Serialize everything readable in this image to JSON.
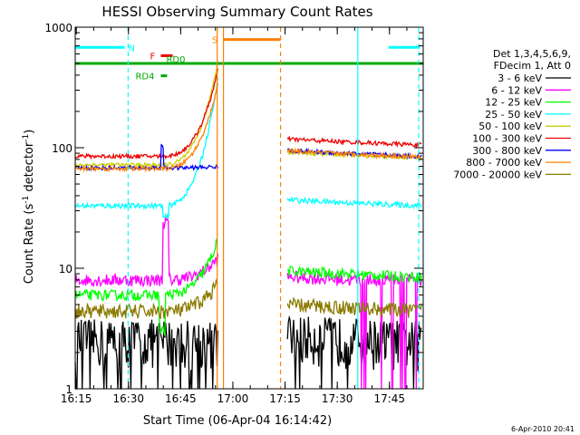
{
  "chart_data": {
    "type": "line",
    "title": "HESSI Observing Summary Count Rates",
    "xlabel": "Start Time (06-Apr-04 16:14:42)",
    "ylabel_main": "Count Rate (s",
    "ylabel_sup1": "-1",
    "ylabel_mid": " detector",
    "ylabel_sup2": "-1",
    "ylabel_end": ")",
    "yscale": "log",
    "ylim": [
      1,
      1000
    ],
    "xlim_minutes": [
      0,
      100
    ],
    "x_ticks": [
      {
        "m": 0.3,
        "label": "16:15"
      },
      {
        "m": 15.3,
        "label": "16:30"
      },
      {
        "m": 30.3,
        "label": "16:45"
      },
      {
        "m": 45.3,
        "label": "17:00"
      },
      {
        "m": 60.3,
        "label": "17:15"
      },
      {
        "m": 75.3,
        "label": "17:30"
      },
      {
        "m": 90.3,
        "label": "17:45"
      }
    ],
    "y_ticks": [
      {
        "v": 1,
        "label": "1"
      },
      {
        "v": 10,
        "label": "10"
      },
      {
        "v": 100,
        "label": "100"
      },
      {
        "v": 1000,
        "label": "1000"
      }
    ],
    "legend_header": [
      "Det 1,3,4,5,6,9,",
      "FDecim 1, Att 0"
    ],
    "series": [
      {
        "name": "3 - 6 keV",
        "color": "#000000",
        "pre": 2.6,
        "post": 2.8,
        "peak": 2.5,
        "noise": 0.45
      },
      {
        "name": "6 - 12 keV",
        "color": "#ff00ff",
        "pre": 8.0,
        "post": 8.5,
        "peak": 12,
        "noise": 0.12
      },
      {
        "name": "12 - 25 keV",
        "color": "#00ff00",
        "pre": 6.0,
        "post": 9.5,
        "peak": 17,
        "noise": 0.1
      },
      {
        "name": "25 - 50 keV",
        "color": "#00ffff",
        "pre": 33,
        "post": 37,
        "peak": 370,
        "noise": 0.05
      },
      {
        "name": "50 - 100 keV",
        "color": "#cccc00",
        "pre": 72,
        "post": 92,
        "peak": 520,
        "noise": 0.04
      },
      {
        "name": "100 - 300 keV",
        "color": "#ee0000",
        "pre": 85,
        "post": 118,
        "peak": 440,
        "noise": 0.04
      },
      {
        "name": "300 - 800 keV",
        "color": "#0000ff",
        "pre": 68,
        "post": 95,
        "peak": 70,
        "noise": 0.04
      },
      {
        "name": "800 - 7000 keV",
        "color": "#ff8000",
        "pre": 67,
        "post": 94,
        "peak": 330,
        "noise": 0.04
      },
      {
        "name": "7000 - 20000 keV",
        "color": "#8b7a00",
        "pre": 4.4,
        "post": 5.0,
        "peak": 7.5,
        "noise": 0.14
      }
    ],
    "annotations": {
      "N": {
        "label": "N",
        "color": "#00ffff",
        "ranges": [
          [
            0,
            14.2
          ],
          [
            90,
            99
          ]
        ],
        "level": 680
      },
      "F": {
        "label": "F",
        "color": "#ee0000",
        "range": [
          24.6,
          28.0
        ],
        "level": 580
      },
      "RD0": {
        "label": "RD0",
        "color": "#00aa00",
        "level": 500
      },
      "RD4": {
        "label": "RD4",
        "color": "#00aa00",
        "range": [
          24.6,
          26.4
        ],
        "level": 395
      },
      "S": {
        "label": "S",
        "color": "#ff8000",
        "range": [
          42.7,
          59.0
        ],
        "level": 790
      }
    },
    "markers": {
      "cyan_dashed": [
        15.2,
        98.7
      ],
      "cyan_solid": [
        81.2
      ],
      "orange_solid": [
        40.8,
        42.6
      ],
      "orange_dashed": [
        59.0
      ]
    },
    "data_gap_minutes": [
      41.0,
      61.0
    ]
  },
  "footer": {
    "timestamp": "6-Apr-2010 20:41"
  }
}
